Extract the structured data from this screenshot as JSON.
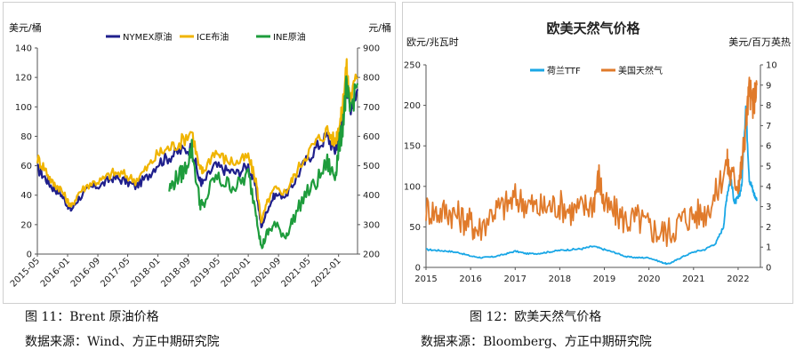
{
  "figures": [
    {
      "caption": "图 11：Brent 原油价格",
      "source": "数据来源：Wind、方正中期研究院"
    },
    {
      "caption": "图 12：欧美天然气价格",
      "source": "数据来源：Bloomberg、方正中期研究院"
    }
  ],
  "chart_data": [
    {
      "type": "line",
      "title": "",
      "left_unit": "美元/桶",
      "right_unit": "元/桶",
      "ylim_left": [
        0,
        140
      ],
      "yticks_left": [
        "0",
        "20",
        "40",
        "60",
        "80",
        "100",
        "120",
        "140"
      ],
      "ylim_right": [
        200,
        900
      ],
      "yticks_right": [
        "200",
        "300",
        "400",
        "500",
        "600",
        "700",
        "800",
        "900"
      ],
      "xlim": [
        2015.33,
        2022.42
      ],
      "x_tick_labels": [
        "2015-05",
        "2016-01",
        "2016-09",
        "2017-05",
        "2018-01",
        "2018-09",
        "2019-05",
        "2020-01",
        "2020-09",
        "2021-05",
        "2022-01"
      ],
      "x_tick_values": [
        2015.33,
        2016.0,
        2016.67,
        2017.33,
        2018.0,
        2018.67,
        2019.33,
        2020.0,
        2020.67,
        2021.33,
        2022.0
      ],
      "grid": false,
      "legend_position": "top",
      "series": [
        {
          "name": "NYMEX原油",
          "color": "#1f1f8c",
          "axis": "left",
          "x": [
            2015.33,
            2015.5,
            2015.67,
            2015.83,
            2016.0,
            2016.08,
            2016.25,
            2016.5,
            2016.75,
            2017.0,
            2017.25,
            2017.5,
            2017.75,
            2018.0,
            2018.25,
            2018.5,
            2018.75,
            2018.92,
            2019.0,
            2019.25,
            2019.5,
            2019.75,
            2020.0,
            2020.17,
            2020.29,
            2020.42,
            2020.58,
            2020.83,
            2021.0,
            2021.25,
            2021.5,
            2021.75,
            2021.92,
            2022.0,
            2022.08,
            2022.17,
            2022.25,
            2022.42
          ],
          "y": [
            58,
            52,
            45,
            42,
            33,
            30,
            38,
            45,
            47,
            52,
            50,
            46,
            52,
            62,
            66,
            70,
            72,
            50,
            48,
            60,
            57,
            55,
            60,
            45,
            18,
            30,
            40,
            40,
            48,
            62,
            72,
            80,
            70,
            80,
            90,
            118,
            100,
            112
          ]
        },
        {
          "name": "ICE布油",
          "color": "#f0b400",
          "axis": "left",
          "x": [
            2015.33,
            2015.5,
            2015.67,
            2015.83,
            2016.0,
            2016.08,
            2016.25,
            2016.5,
            2016.75,
            2017.0,
            2017.25,
            2017.5,
            2017.75,
            2018.0,
            2018.25,
            2018.5,
            2018.75,
            2018.92,
            2019.0,
            2019.25,
            2019.5,
            2019.75,
            2020.0,
            2020.17,
            2020.29,
            2020.42,
            2020.58,
            2020.83,
            2021.0,
            2021.25,
            2021.5,
            2021.75,
            2021.92,
            2022.0,
            2022.08,
            2022.17,
            2022.25,
            2022.42
          ],
          "y": [
            65,
            58,
            48,
            45,
            36,
            32,
            42,
            48,
            50,
            55,
            54,
            50,
            58,
            68,
            72,
            76,
            84,
            58,
            56,
            70,
            64,
            62,
            66,
            50,
            22,
            35,
            44,
            42,
            52,
            66,
            76,
            84,
            76,
            86,
            96,
            128,
            106,
            120
          ]
        },
        {
          "name": "INE原油",
          "color": "#1e9c3c",
          "axis": "right",
          "x": [
            2018.25,
            2018.42,
            2018.58,
            2018.75,
            2018.92,
            2019.0,
            2019.25,
            2019.5,
            2019.75,
            2020.0,
            2020.17,
            2020.29,
            2020.42,
            2020.58,
            2020.83,
            2021.0,
            2021.25,
            2021.5,
            2021.75,
            2021.92,
            2022.0,
            2022.08,
            2022.17,
            2022.25,
            2022.42
          ],
          "y": [
            420,
            460,
            480,
            560,
            380,
            360,
            460,
            440,
            430,
            470,
            350,
            220,
            270,
            300,
            260,
            320,
            400,
            440,
            510,
            460,
            560,
            620,
            760,
            690,
            780
          ]
        }
      ]
    },
    {
      "type": "line",
      "title": "欧美天然气价格",
      "left_unit": "欧元/兆瓦时",
      "right_unit": "美元/百万英热",
      "ylim_left": [
        0,
        250
      ],
      "yticks_left": [
        "0",
        "50",
        "100",
        "150",
        "200",
        "250"
      ],
      "ylim_right": [
        0,
        10
      ],
      "yticks_right": [
        "0",
        "1",
        "2",
        "3",
        "4",
        "5",
        "6",
        "7",
        "8",
        "9",
        "10"
      ],
      "xlim": [
        2015.0,
        2022.5
      ],
      "x_tick_labels": [
        "2015",
        "2016",
        "2017",
        "2018",
        "2019",
        "2020",
        "2021",
        "2022"
      ],
      "x_tick_values": [
        2015,
        2016,
        2017,
        2018,
        2019,
        2020,
        2021,
        2022
      ],
      "grid": false,
      "legend_position": "top-left",
      "series": [
        {
          "name": "荷兰TTF",
          "color": "#1aa7e6",
          "axis": "left",
          "x": [
            2015.0,
            2015.25,
            2015.5,
            2015.75,
            2016.0,
            2016.25,
            2016.5,
            2016.75,
            2017.0,
            2017.25,
            2017.5,
            2017.75,
            2018.0,
            2018.25,
            2018.5,
            2018.75,
            2019.0,
            2019.25,
            2019.5,
            2019.75,
            2020.0,
            2020.25,
            2020.42,
            2020.58,
            2020.75,
            2021.0,
            2021.25,
            2021.5,
            2021.67,
            2021.75,
            2021.83,
            2021.92,
            2022.0,
            2022.08,
            2022.17,
            2022.25,
            2022.33,
            2022.42
          ],
          "y": [
            22,
            21,
            20,
            18,
            14,
            12,
            13,
            16,
            20,
            17,
            17,
            19,
            21,
            22,
            23,
            26,
            22,
            18,
            13,
            12,
            12,
            7,
            4,
            8,
            13,
            19,
            22,
            30,
            50,
            90,
            110,
            80,
            85,
            100,
            200,
            110,
            95,
            82
          ]
        },
        {
          "name": "美国天然气",
          "color": "#e07a2a",
          "axis": "right",
          "x": [
            2015.0,
            2015.25,
            2015.5,
            2015.75,
            2016.0,
            2016.17,
            2016.5,
            2016.75,
            2017.0,
            2017.25,
            2017.5,
            2017.75,
            2018.0,
            2018.25,
            2018.5,
            2018.75,
            2018.88,
            2019.0,
            2019.25,
            2019.5,
            2019.75,
            2020.0,
            2020.25,
            2020.5,
            2020.75,
            2021.0,
            2021.25,
            2021.5,
            2021.75,
            2021.83,
            2022.0,
            2022.08,
            2022.17,
            2022.25,
            2022.33,
            2022.42
          ],
          "y": [
            2.9,
            2.7,
            2.8,
            2.5,
            2.2,
            1.8,
            2.8,
            3.0,
            3.4,
            3.2,
            2.9,
            3.0,
            3.1,
            2.8,
            2.9,
            3.2,
            4.5,
            3.0,
            2.7,
            2.3,
            2.4,
            2.0,
            1.7,
            1.8,
            2.4,
            2.6,
            2.7,
            3.6,
            5.2,
            4.5,
            4.2,
            5.0,
            7.0,
            8.8,
            8.0,
            9.0
          ]
        }
      ]
    }
  ]
}
